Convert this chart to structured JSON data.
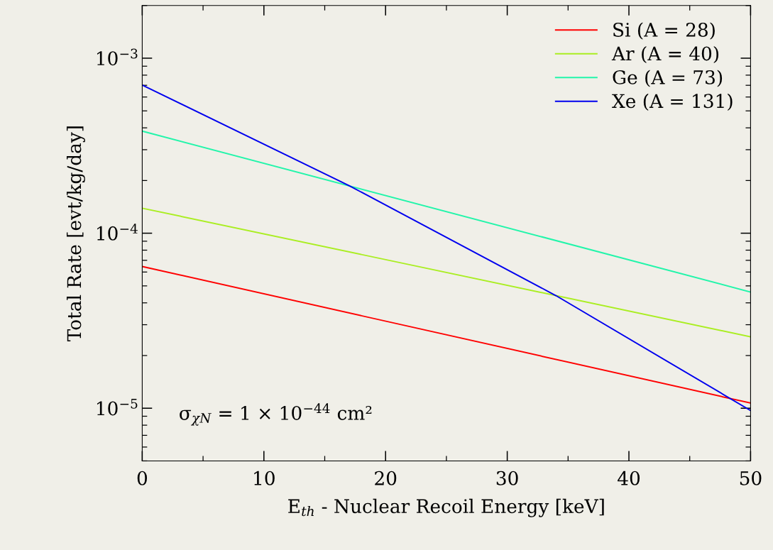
{
  "chart_data": {
    "type": "line",
    "xlabel": "E$_{th}$ - Nuclear Recoil Energy [keV]",
    "ylabel": "Total Rate [evt/kg/day]",
    "log": "y",
    "xlim": [
      0,
      50
    ],
    "xticks": [
      0,
      10,
      20,
      30,
      40,
      50
    ],
    "ylim": [
      5e-06,
      0.002
    ],
    "yticks": [
      {
        "value": 1e-05,
        "label": "10$^{−5}$"
      },
      {
        "value": 0.0001,
        "label": "10$^{−4}$"
      },
      {
        "value": 0.001,
        "label": "10$^{−3}$"
      }
    ],
    "grid": false,
    "legend": "top right",
    "line_style": "solid",
    "marker": "none",
    "annotations": [
      "σ$_{χN}$ = 1 × 10$^{−44}$ cm²"
    ],
    "series": [
      {
        "name": "Si (A = 28)",
        "color": "#ff0000",
        "x": [
          0,
          50
        ],
        "values": [
          6.45e-05,
          1.07e-05
        ]
      },
      {
        "name": "Ar (A = 40)",
        "color": "#aaee22",
        "x": [
          0,
          50
        ],
        "values": [
          0.000139,
          2.56e-05
        ]
      },
      {
        "name": "Ge (A = 73)",
        "color": "#22f5aa",
        "x": [
          0,
          50
        ],
        "values": [
          0.000383,
          4.61e-05
        ]
      },
      {
        "name": "Xe (A = 131)",
        "color": "#0000ee",
        "x": [
          0,
          17,
          34,
          50
        ],
        "values": [
          0.000702,
          0.000187,
          4.4e-05,
          9.7e-06
        ]
      }
    ]
  }
}
